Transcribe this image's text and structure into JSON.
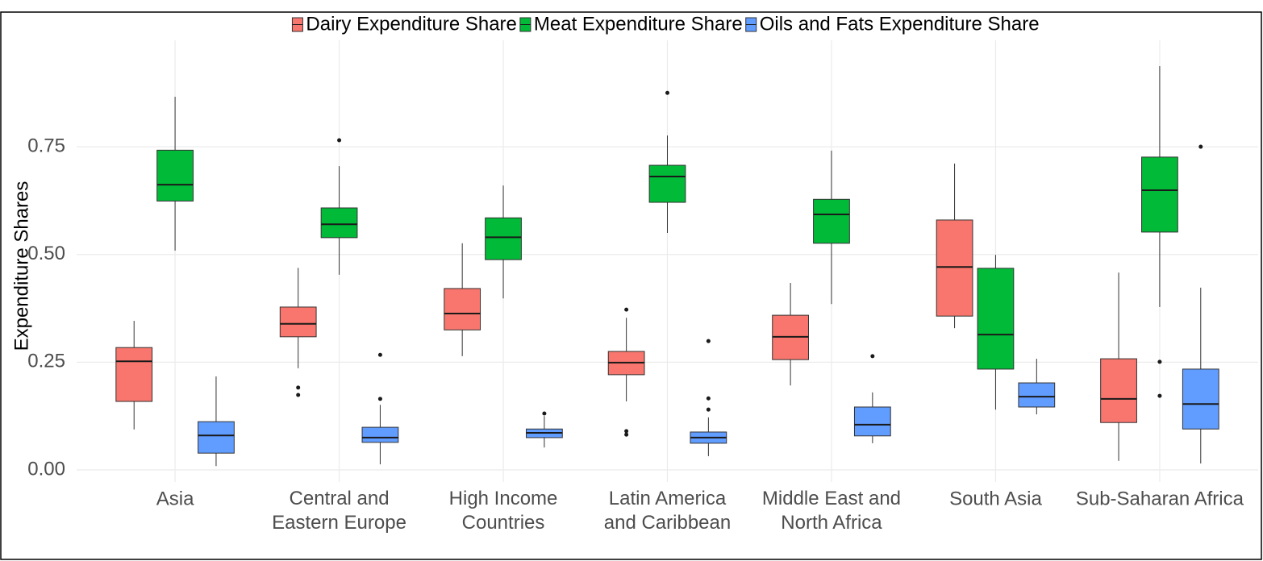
{
  "chart_data": {
    "type": "box",
    "ylabel": "Expenditure Shares",
    "categories": [
      "Asia",
      "Central and\nEastern Europe",
      "High Income\nCountries",
      "Latin America\nand Caribbean",
      "Middle East and\nNorth Africa",
      "South Asia",
      "Sub-Saharan Africa"
    ],
    "ylim": [
      -0.028,
      0.997
    ],
    "yticks": [
      {
        "value": 0,
        "label": "0.00"
      },
      {
        "value": 0.25,
        "label": "0.25"
      },
      {
        "value": 0.5,
        "label": "0.50"
      },
      {
        "value": 0.75,
        "label": "0.75"
      }
    ],
    "grid": true,
    "legend": "top",
    "series": [
      {
        "name": "Dairy Expenditure Share",
        "color": "#f8766d",
        "values": [
          {
            "low": 0.094,
            "q1": 0.159,
            "median": 0.252,
            "q3": 0.284,
            "high": 0.346
          },
          {
            "low": 0.236,
            "q1": 0.309,
            "median": 0.339,
            "q3": 0.378,
            "high": 0.469,
            "outliers": [
              0.191,
              0.174
            ]
          },
          {
            "low": 0.264,
            "q1": 0.325,
            "median": 0.363,
            "q3": 0.421,
            "high": 0.526
          },
          {
            "low": 0.159,
            "q1": 0.221,
            "median": 0.249,
            "q3": 0.275,
            "high": 0.353,
            "outliers": [
              0.372,
              0.09,
              0.082
            ]
          },
          {
            "low": 0.196,
            "q1": 0.256,
            "median": 0.309,
            "q3": 0.359,
            "high": 0.434
          },
          {
            "low": 0.329,
            "q1": 0.357,
            "median": 0.471,
            "q3": 0.58,
            "high": 0.711
          },
          {
            "low": 0.021,
            "q1": 0.11,
            "median": 0.165,
            "q3": 0.258,
            "high": 0.458
          }
        ]
      },
      {
        "name": "Meat Expenditure Share",
        "color": "#00ba38",
        "values": [
          {
            "low": 0.509,
            "q1": 0.624,
            "median": 0.662,
            "q3": 0.742,
            "high": 0.866
          },
          {
            "low": 0.453,
            "q1": 0.539,
            "median": 0.57,
            "q3": 0.608,
            "high": 0.705,
            "outliers": [
              0.765
            ]
          },
          {
            "low": 0.398,
            "q1": 0.488,
            "median": 0.54,
            "q3": 0.585,
            "high": 0.66
          },
          {
            "low": 0.55,
            "q1": 0.621,
            "median": 0.681,
            "q3": 0.707,
            "high": 0.776,
            "outliers": [
              0.875
            ]
          },
          {
            "low": 0.385,
            "q1": 0.526,
            "median": 0.593,
            "q3": 0.628,
            "high": 0.741
          },
          {
            "low": 0.14,
            "q1": 0.234,
            "median": 0.314,
            "q3": 0.468,
            "high": 0.499
          },
          {
            "low": 0.378,
            "q1": 0.552,
            "median": 0.649,
            "q3": 0.726,
            "high": 0.937,
            "outliers": [
              0.251,
              0.172
            ]
          }
        ]
      },
      {
        "name": "Oils and Fats Expenditure Share",
        "color": "#619cff",
        "values": [
          {
            "low": 0.009,
            "q1": 0.039,
            "median": 0.08,
            "q3": 0.112,
            "high": 0.217
          },
          {
            "low": 0.013,
            "q1": 0.064,
            "median": 0.075,
            "q3": 0.099,
            "high": 0.151,
            "outliers": [
              0.267,
              0.165
            ]
          },
          {
            "low": 0.052,
            "q1": 0.075,
            "median": 0.086,
            "q3": 0.095,
            "high": 0.125,
            "outliers": [
              0.131
            ]
          },
          {
            "low": 0.032,
            "q1": 0.062,
            "median": 0.075,
            "q3": 0.088,
            "high": 0.122,
            "outliers": [
              0.299,
              0.166,
              0.14
            ]
          },
          {
            "low": 0.062,
            "q1": 0.079,
            "median": 0.105,
            "q3": 0.146,
            "high": 0.18,
            "outliers": [
              0.264
            ]
          },
          {
            "low": 0.129,
            "q1": 0.146,
            "median": 0.17,
            "q3": 0.202,
            "high": 0.258
          },
          {
            "low": 0.015,
            "q1": 0.095,
            "median": 0.153,
            "q3": 0.234,
            "high": 0.423,
            "outliers": [
              0.75
            ]
          }
        ]
      }
    ]
  }
}
